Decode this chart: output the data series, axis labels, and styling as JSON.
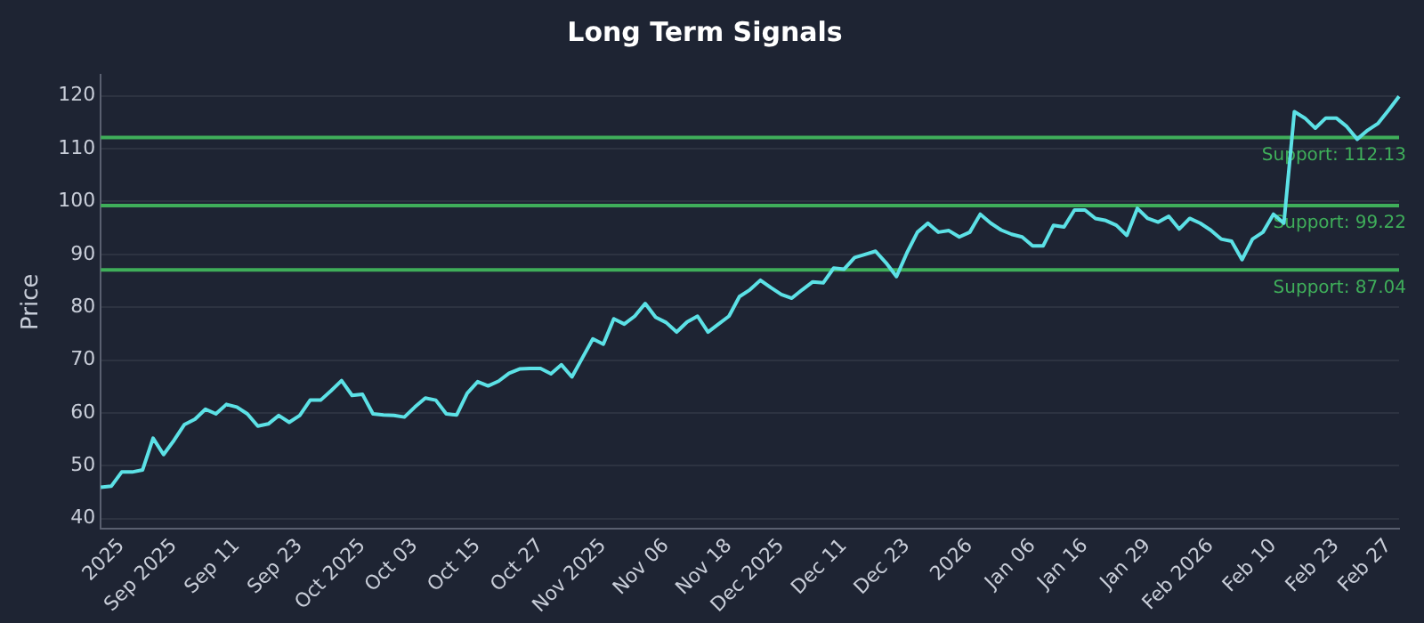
{
  "chart_data": {
    "type": "line",
    "title": "Long Term Signals",
    "ylabel": "Price",
    "categories": [
      null,
      null,
      "2025",
      null,
      null,
      null,
      null,
      "Sep 2025",
      null,
      null,
      null,
      null,
      null,
      "Sep 11",
      null,
      null,
      null,
      null,
      null,
      "Sep 23",
      null,
      null,
      null,
      null,
      null,
      "Oct 2025",
      null,
      null,
      null,
      null,
      "Oct 03",
      null,
      null,
      null,
      null,
      null,
      "Oct 15",
      null,
      null,
      null,
      null,
      null,
      "Oct 27",
      null,
      null,
      null,
      null,
      null,
      "Nov 2025",
      null,
      null,
      null,
      null,
      null,
      "Nov 06",
      null,
      null,
      null,
      null,
      null,
      "Nov 18",
      null,
      null,
      null,
      null,
      "Dec 2025",
      null,
      null,
      null,
      null,
      null,
      "Dec 11",
      null,
      null,
      null,
      null,
      null,
      "Dec 23",
      null,
      null,
      null,
      null,
      null,
      "2026",
      null,
      null,
      null,
      null,
      null,
      "Jan 06",
      null,
      null,
      null,
      null,
      "Jan 16",
      null,
      null,
      null,
      null,
      null,
      "Jan 29",
      null,
      null,
      null,
      null,
      null,
      "Feb 2026",
      null,
      null,
      null,
      null,
      null,
      "Feb 10",
      null,
      null,
      null,
      null,
      null,
      "Feb 23",
      null,
      null,
      null,
      null,
      "Feb 27",
      null
    ],
    "series": [
      {
        "color": "#5ce1e6",
        "values": [
          45.9,
          46.1,
          48.8,
          48.8,
          49.2,
          55.2,
          52.1,
          54.8,
          57.8,
          58.8,
          60.7,
          59.8,
          61.6,
          61.1,
          59.8,
          57.5,
          57.9,
          59.5,
          58.2,
          59.5,
          62.4,
          62.4,
          64.2,
          66.1,
          63.3,
          63.5,
          59.8,
          59.6,
          59.5,
          59.2,
          61.1,
          62.8,
          62.4,
          59.8,
          59.6,
          63.7,
          65.9,
          65.1,
          66.0,
          67.5,
          68.3,
          68.4,
          68.4,
          67.4,
          69.1,
          66.8,
          70.4,
          74.0,
          73.0,
          77.8,
          76.8,
          78.3,
          80.7,
          78.1,
          77.1,
          75.3,
          77.2,
          78.3,
          75.3,
          76.8,
          78.3,
          82.0,
          83.3,
          85.1,
          83.7,
          82.4,
          81.7,
          83.3,
          84.8,
          84.6,
          87.4,
          87.2,
          89.4,
          90.0,
          90.6,
          88.4,
          85.8,
          90.3,
          94.2,
          95.9,
          94.2,
          94.5,
          93.3,
          94.2,
          97.6,
          95.9,
          94.6,
          93.8,
          93.3,
          91.6,
          91.6,
          95.5,
          95.2,
          98.4,
          98.4,
          96.8,
          96.4,
          95.5,
          93.6,
          98.7,
          96.8,
          96.1,
          97.2,
          94.8,
          96.8,
          95.9,
          94.6,
          92.9,
          92.5,
          89.0,
          92.9,
          94.2,
          97.6,
          95.9,
          117.0,
          115.8,
          113.9,
          115.8,
          115.8,
          114.2,
          111.8,
          113.5,
          114.8,
          117.3,
          119.9
        ]
      }
    ],
    "ylim": [
      38,
      124
    ],
    "yticks": [
      40,
      50,
      60,
      70,
      80,
      90,
      100,
      110,
      120
    ],
    "ref_lines": [
      {
        "axis": "y",
        "value": 112.13,
        "label": "Support: 112.13",
        "color": "#3fae5a"
      },
      {
        "axis": "y",
        "value": 99.22,
        "label": "Support: 99.22",
        "color": "#3fae5a"
      },
      {
        "axis": "y",
        "value": 87.04,
        "label": "Support: 87.04",
        "color": "#3fae5a"
      }
    ],
    "grid": "y",
    "legend": false,
    "marker": "none",
    "line_style": "solid"
  }
}
